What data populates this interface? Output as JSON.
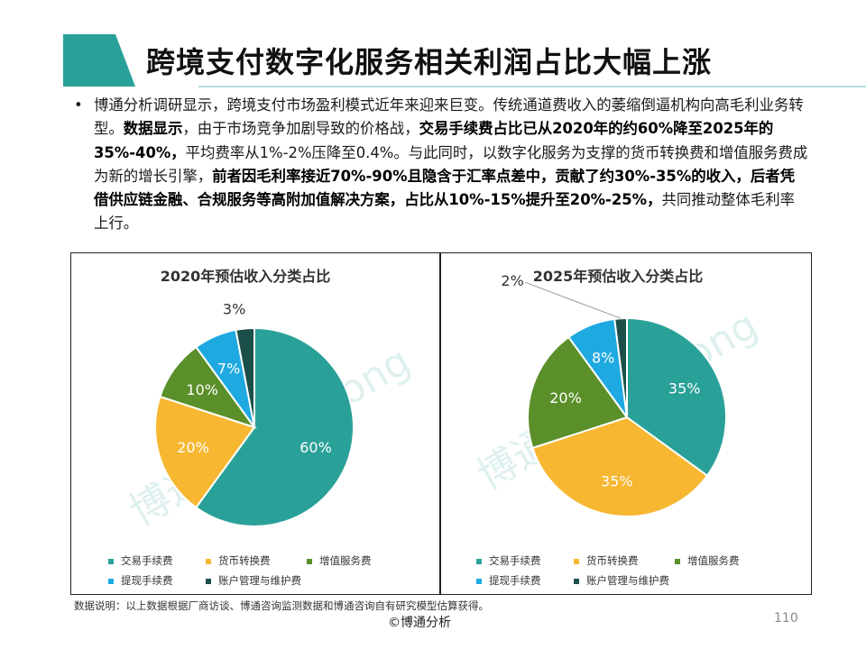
{
  "slide": {
    "title": "跨境支付数字化服务相关利润占比大幅上涨",
    "bullet": "•",
    "intro_segments": [
      {
        "text": "博通分析调研显示，跨境支付市场盈利模式近年来迎来巨变。传统通道费收入的萎缩倒逼机构向高毛利业务转型。",
        "bold": false
      },
      {
        "text": "数据显示",
        "bold": true
      },
      {
        "text": "，由于市场竞争加剧导致的价格战，",
        "bold": false
      },
      {
        "text": "交易手续费占比已从2020年的约60%降至2025年的35%-40%，",
        "bold": true
      },
      {
        "text": "平均费率从1%-2%压降至0.4%。与此同时，以数字化服务为支撑的货币转换费和增值服务费成为新的增长引擎，",
        "bold": false
      },
      {
        "text": "前者因毛利率接近70%-90%且隐含于汇率点差中，贡献了约30%-35%的收入，后者凭借供应链金融、合规服务等高附加值解决方案，占比从10%-15%提升至20%-25%，",
        "bold": true
      },
      {
        "text": "共同推动整体毛利率上行。",
        "bold": false
      }
    ],
    "note": "数据说明：以上数据根据厂商访谈、博通咨询监测数据和博通咨询自有研究模型估算获得。",
    "footer": "©博通分析",
    "page_number": "110",
    "watermarks": [
      "博通分析 BoTong",
      "博通分析 BoTong"
    ]
  },
  "colors": {
    "accent": "#2aa198",
    "series": [
      "#2aa198",
      "#f7b731",
      "#5a8f29",
      "#1fa9e1",
      "#1c4f4a"
    ]
  },
  "chart_data": [
    {
      "type": "pie",
      "title": "2020年预估收入分类占比",
      "categories": [
        "交易手续费",
        "货币转换费",
        "增值服务费",
        "提现手续费",
        "账户管理与维护费"
      ],
      "values": [
        60,
        20,
        10,
        7,
        3
      ],
      "labels": [
        "60%",
        "20%",
        "10%",
        "7%",
        "3%"
      ],
      "legend": "bottom"
    },
    {
      "type": "pie",
      "title": "2025年预估收入分类占比",
      "categories": [
        "交易手续费",
        "货币转换费",
        "增值服务费",
        "提现手续费",
        "账户管理与维护费"
      ],
      "values": [
        35,
        35,
        20,
        8,
        2
      ],
      "labels": [
        "35%",
        "35%",
        "20%",
        "8%",
        "2%"
      ],
      "legend": "bottom"
    }
  ]
}
